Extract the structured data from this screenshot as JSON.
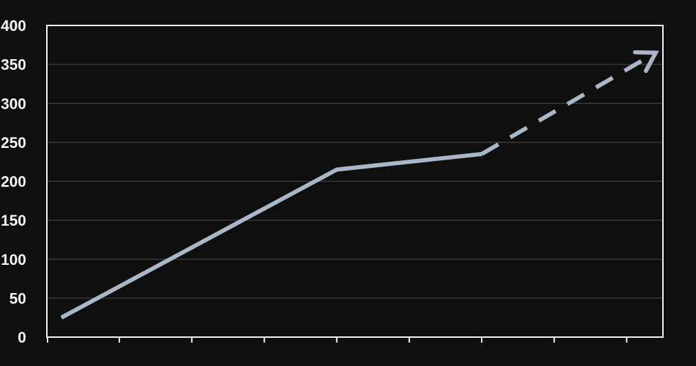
{
  "chart_data": {
    "type": "line",
    "title": "",
    "xlabel": "",
    "ylabel": "",
    "ylim": [
      0,
      400
    ],
    "yticks": [
      0,
      50,
      100,
      150,
      200,
      250,
      300,
      350,
      400
    ],
    "ytick_labels": [
      "0",
      "50",
      "100",
      "150",
      "200",
      "250",
      "300",
      "350",
      "400"
    ],
    "xlim": [
      0,
      8.5
    ],
    "xticks": [
      0,
      1,
      2,
      3,
      4,
      5,
      6,
      7,
      8
    ],
    "grid": true,
    "series": [
      {
        "style": "solid",
        "color": "#a9b8c8",
        "x": [
          0.2,
          4.0,
          6.0
        ],
        "y": [
          25,
          215,
          235
        ]
      },
      {
        "style": "dashed",
        "color": "#a9b8c8",
        "x": [
          6.0,
          8.4
        ],
        "y": [
          235,
          365
        ],
        "arrow_at_end": true
      }
    ]
  },
  "colors": {
    "background": "#0f0f0f",
    "frame": "#ffffff",
    "grid": "#3a3a3a",
    "line": "#a9b8c8"
  }
}
